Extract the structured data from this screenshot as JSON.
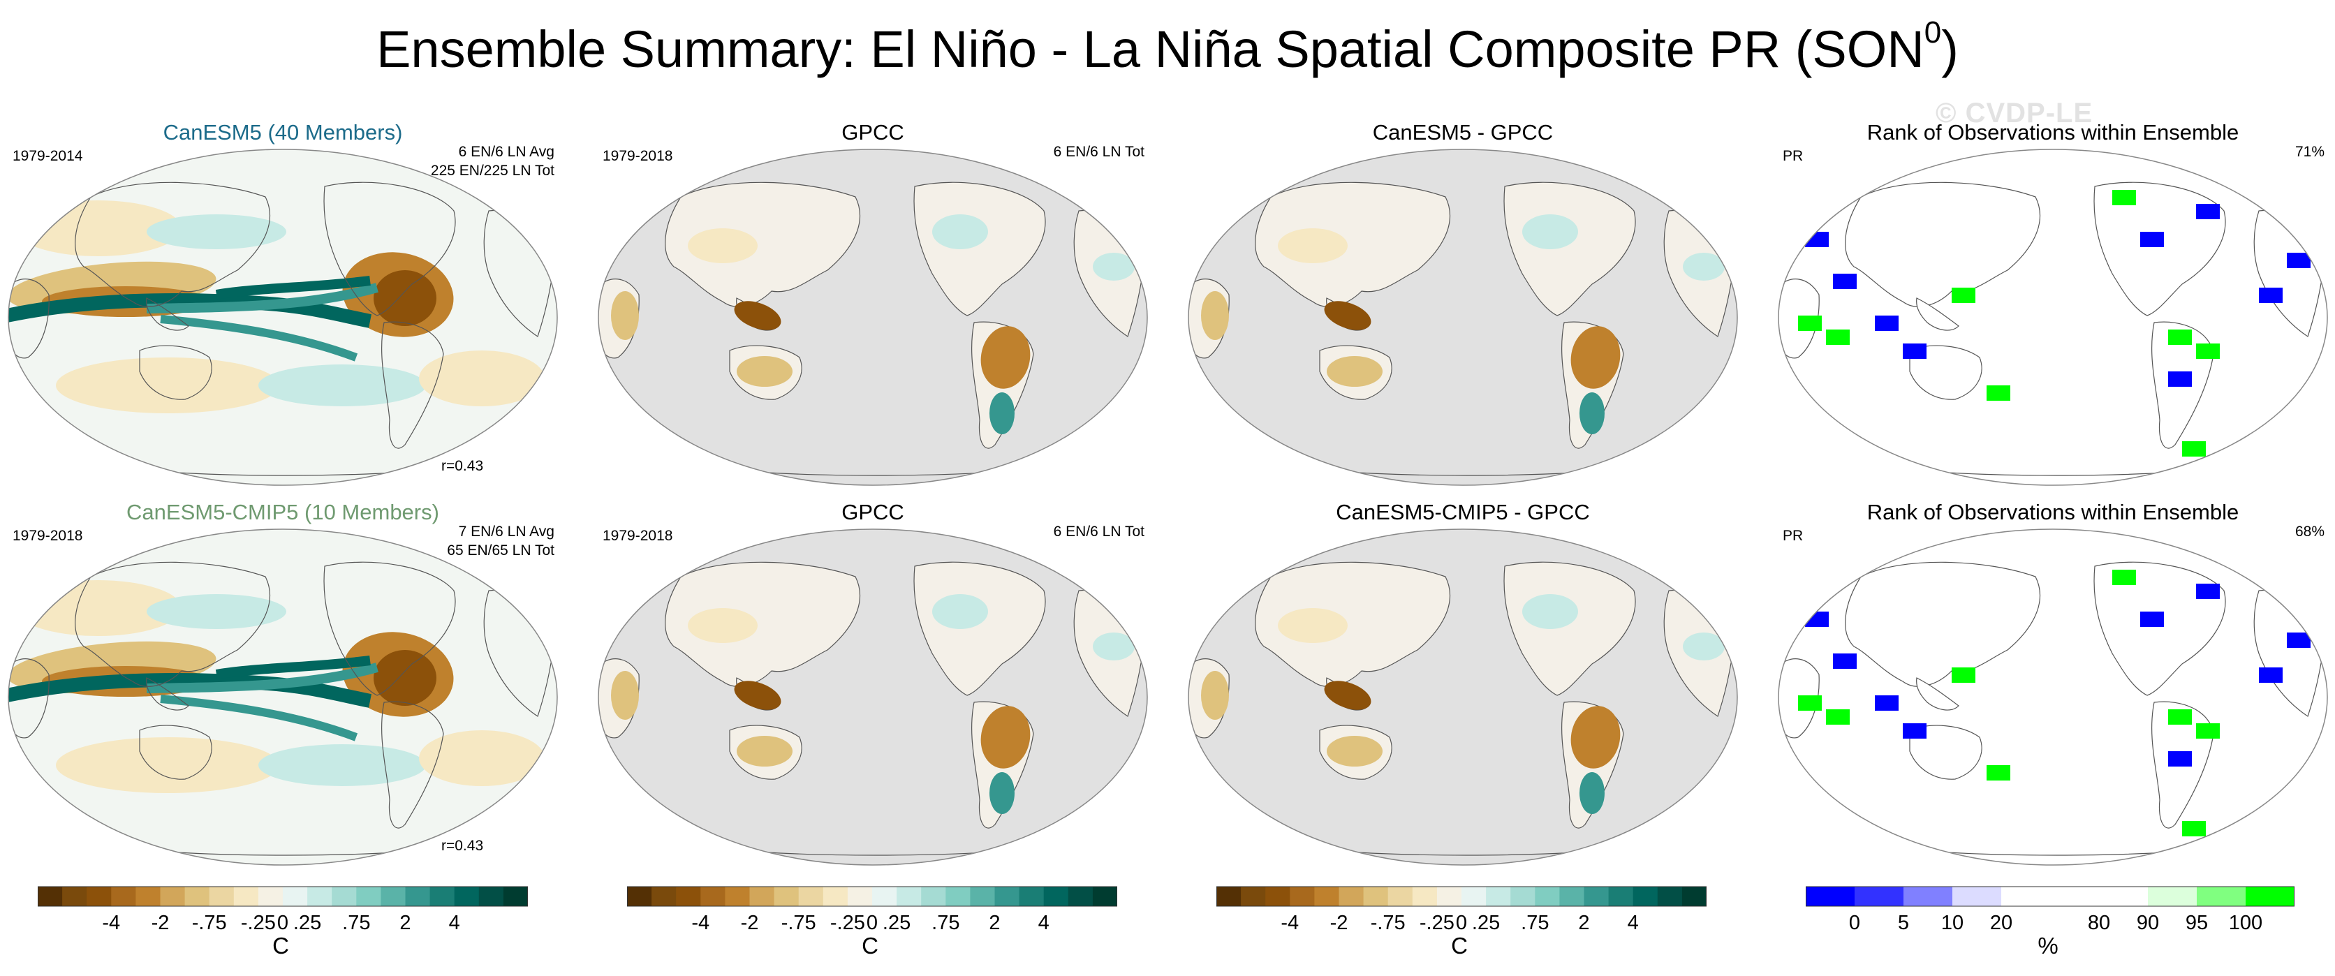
{
  "title": "Ensemble Summary: El Niño - La Niña Spatial Composite PR (SON",
  "title_sup": "0",
  "title_close": ")",
  "watermark": "© CVDP-LE",
  "colors": {
    "brown_dark": "#543005",
    "brown_mid": "#bf812d",
    "tan": "#dfc27d",
    "cream": "#f6e8c3",
    "teal_light": "#c7eae5",
    "teal_mid": "#35978f",
    "teal_dark": "#01665e",
    "teal_darkest": "#003c30",
    "land_gray": "#e1e1e1",
    "blue": "#0000ff",
    "green": "#00ff00"
  },
  "rows": [
    {
      "panels": [
        {
          "title": "CanESM5 (40 Members)",
          "title_color": "#1c6b8a",
          "left_label": "1979-2014",
          "right_lines": [
            "6 EN/6 LN Avg",
            "225 EN/225 LN Tot"
          ],
          "bottom_label": "r=0.43",
          "kind": "model"
        },
        {
          "title": "GPCC",
          "left_label": "1979-2018",
          "right_lines": [
            "6 EN/6 LN Tot"
          ],
          "kind": "obs"
        },
        {
          "title": "CanESM5 - GPCC",
          "kind": "diff"
        },
        {
          "title": "Rank of Observations within Ensemble",
          "left_label": "PR",
          "right_lines": [
            "71%"
          ],
          "kind": "rank"
        }
      ]
    },
    {
      "panels": [
        {
          "title": "CanESM5-CMIP5 (10 Members)",
          "title_color": "#6f9a70",
          "left_label": "1979-2018",
          "right_lines": [
            "7 EN/6 LN Avg",
            "65 EN/65 LN Tot"
          ],
          "bottom_label": "r=0.43",
          "kind": "model"
        },
        {
          "title": "GPCC",
          "left_label": "1979-2018",
          "right_lines": [
            "6 EN/6 LN Tot"
          ],
          "kind": "obs"
        },
        {
          "title": "CanESM5-CMIP5 - GPCC",
          "kind": "diff"
        },
        {
          "title": "Rank of Observations within Ensemble",
          "left_label": "PR",
          "right_lines": [
            "68%"
          ],
          "kind": "rank"
        }
      ]
    }
  ],
  "colorbars": [
    {
      "unit": "C",
      "ticks": [
        "-4",
        "-2",
        "-.75",
        "-.25",
        "0",
        ".25",
        ".75",
        "2",
        "4"
      ],
      "colors": [
        "#543005",
        "#7a4a0c",
        "#8c510a",
        "#a8691d",
        "#bf812d",
        "#d2a65a",
        "#dfc27d",
        "#ebd6a2",
        "#f6e8c3",
        "#f5f1e4",
        "#e8f4f2",
        "#c7eae5",
        "#a5dbd3",
        "#80cdc1",
        "#5ab3a8",
        "#35978f",
        "#1a7e75",
        "#01665e",
        "#024f46",
        "#003c30"
      ]
    },
    {
      "unit": "C",
      "ticks": [
        "-4",
        "-2",
        "-.75",
        "-.25",
        "0",
        ".25",
        ".75",
        "2",
        "4"
      ],
      "colors": [
        "#543005",
        "#7a4a0c",
        "#8c510a",
        "#a8691d",
        "#bf812d",
        "#d2a65a",
        "#dfc27d",
        "#ebd6a2",
        "#f6e8c3",
        "#f5f1e4",
        "#e8f4f2",
        "#c7eae5",
        "#a5dbd3",
        "#80cdc1",
        "#5ab3a8",
        "#35978f",
        "#1a7e75",
        "#01665e",
        "#024f46",
        "#003c30"
      ]
    },
    {
      "unit": "C",
      "ticks": [
        "-4",
        "-2",
        "-.75",
        "-.25",
        "0",
        ".25",
        ".75",
        "2",
        "4"
      ],
      "colors": [
        "#543005",
        "#7a4a0c",
        "#8c510a",
        "#a8691d",
        "#bf812d",
        "#d2a65a",
        "#dfc27d",
        "#ebd6a2",
        "#f6e8c3",
        "#f5f1e4",
        "#e8f4f2",
        "#c7eae5",
        "#a5dbd3",
        "#80cdc1",
        "#5ab3a8",
        "#35978f",
        "#1a7e75",
        "#01665e",
        "#024f46",
        "#003c30"
      ]
    },
    {
      "unit": "%",
      "ticks": [
        "0",
        "5",
        "10",
        "20",
        "80",
        "90",
        "95",
        "100"
      ],
      "colors": [
        "#0000ff",
        "#3232ff",
        "#8080ff",
        "#dcdcff",
        "#ffffff",
        "#ffffff",
        "#ffffff",
        "#dcffdc",
        "#80ff80",
        "#00ff00"
      ]
    }
  ]
}
